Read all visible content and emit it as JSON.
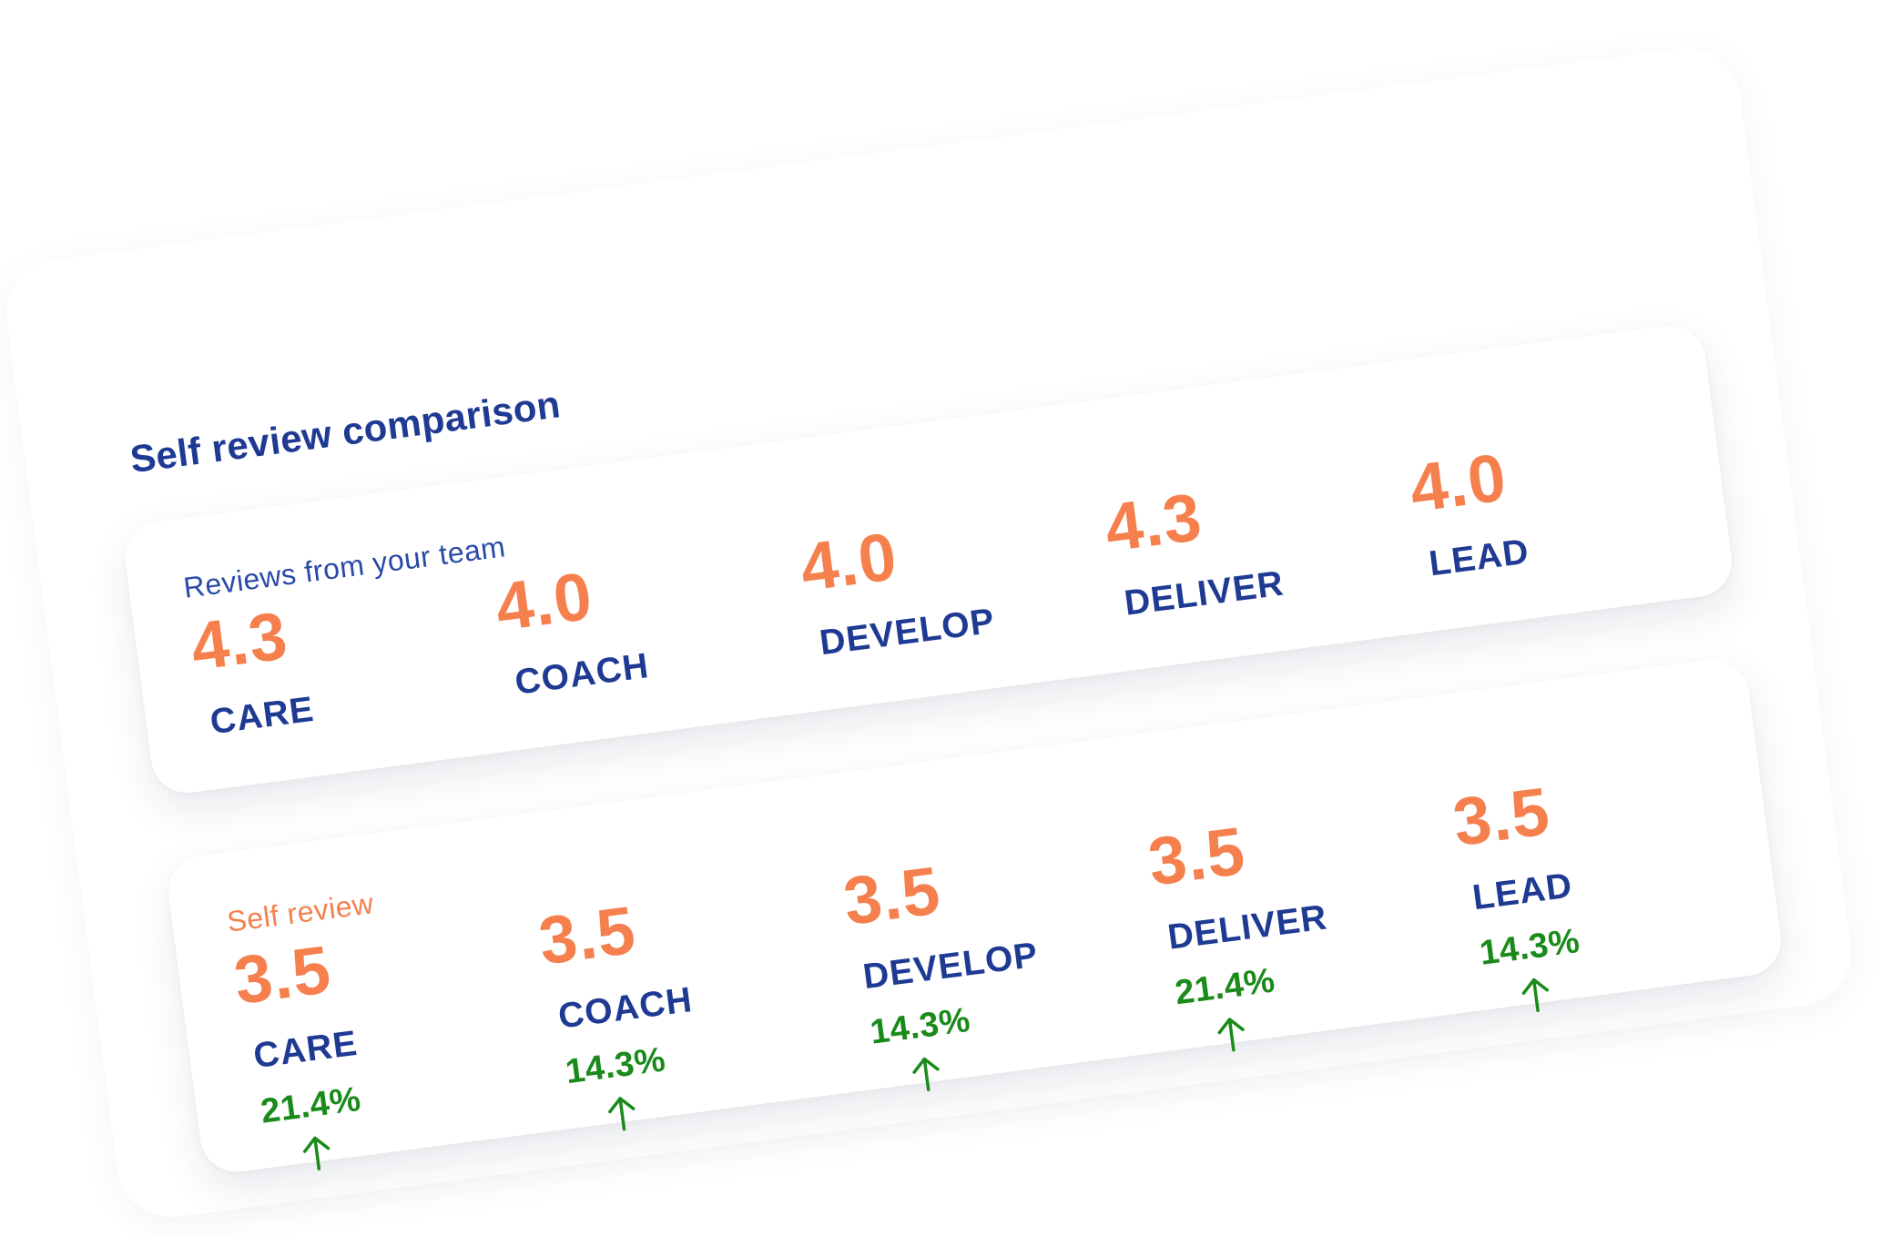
{
  "title": "Self review comparison",
  "team": {
    "label": "Reviews from your team",
    "metrics": [
      {
        "score": "4.3",
        "name": "CARE"
      },
      {
        "score": "4.0",
        "name": "COACH"
      },
      {
        "score": "4.0",
        "name": "DEVELOP"
      },
      {
        "score": "4.3",
        "name": "DELIVER"
      },
      {
        "score": "4.0",
        "name": "LEAD"
      }
    ]
  },
  "self": {
    "label": "Self review",
    "metrics": [
      {
        "score": "3.5",
        "name": "CARE",
        "pct": "21.4%",
        "icon": "arrow-up-icon"
      },
      {
        "score": "3.5",
        "name": "COACH",
        "pct": "14.3%",
        "icon": "arrow-up-icon"
      },
      {
        "score": "3.5",
        "name": "DEVELOP",
        "pct": "14.3%",
        "icon": "arrow-up-icon"
      },
      {
        "score": "3.5",
        "name": "DELIVER",
        "pct": "21.4%",
        "icon": "arrow-up-icon"
      },
      {
        "score": "3.5",
        "name": "LEAD",
        "pct": "14.3%",
        "icon": "arrow-up-icon"
      }
    ]
  },
  "colors": {
    "accent_orange": "#f5804e",
    "navy": "#1f3a93",
    "positive_green": "#1a8a1a"
  }
}
